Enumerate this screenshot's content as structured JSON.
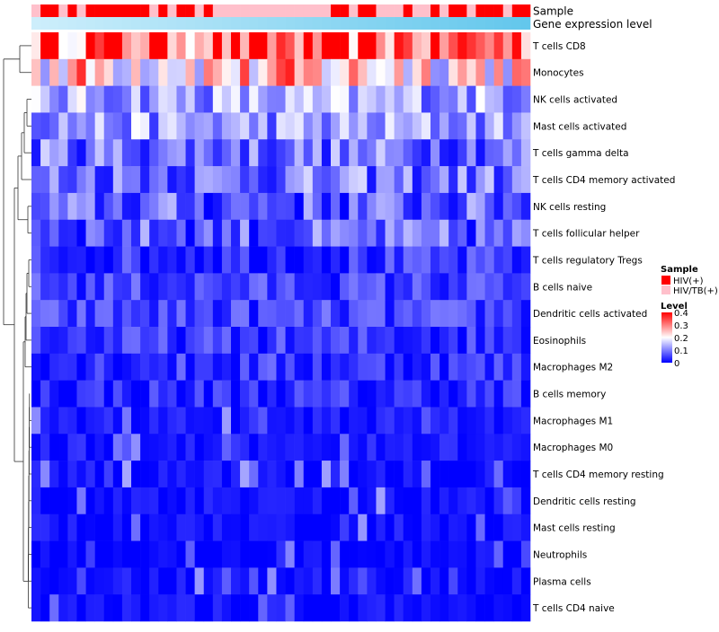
{
  "chart_data": {
    "type": "heatmap",
    "annotation_labels": {
      "sample": "Sample",
      "gene_expression": "Gene expression level"
    },
    "sample_groups": [
      "HIV/TB(+)",
      "HIV(+)",
      "HIV(+)",
      "HIV/TB(+)",
      "HIV(+)",
      "HIV/TB(+)",
      "HIV(+)",
      "HIV(+)",
      "HIV(+)",
      "HIV(+)",
      "HIV(+)",
      "HIV(+)",
      "HIV(+)",
      "HIV/TB(+)",
      "HIV(+)",
      "HIV/TB(+)",
      "HIV(+)",
      "HIV(+)",
      "HIV/TB(+)",
      "HIV(+)",
      "HIV/TB(+)",
      "HIV/TB(+)",
      "HIV/TB(+)",
      "HIV/TB(+)",
      "HIV/TB(+)",
      "HIV/TB(+)",
      "HIV/TB(+)",
      "HIV/TB(+)",
      "HIV/TB(+)",
      "HIV/TB(+)",
      "HIV/TB(+)",
      "HIV/TB(+)",
      "HIV/TB(+)",
      "HIV(+)",
      "HIV(+)",
      "HIV/TB(+)",
      "HIV(+)",
      "HIV(+)",
      "HIV/TB(+)",
      "HIV/TB(+)",
      "HIV/TB(+)",
      "HIV(+)",
      "HIV/TB(+)",
      "HIV/TB(+)",
      "HIV(+)",
      "HIV/TB(+)",
      "HIV(+)",
      "HIV(+)",
      "HIV/TB(+)",
      "HIV(+)",
      "HIV(+)",
      "HIV(+)",
      "HIV/TB(+)",
      "HIV(+)",
      "HIV(+)"
    ],
    "rows": [
      "T cells CD8",
      "Monocytes",
      "NK cells activated",
      "Mast cells activated",
      "T cells gamma delta",
      "T cells CD4 memory activated",
      "NK cells resting",
      "T cells follicular helper",
      "T cells regulatory  Tregs",
      "B cells naive",
      "Dendritic cells activated",
      "Eosinophils",
      "Macrophages M2",
      "B cells memory",
      "Macrophages M1",
      "Macrophages M0",
      "T cells CD4 memory resting",
      "Dendritic cells resting",
      "Mast cells resting",
      "Neutrophils",
      "Plasma cells",
      "T cells CD4 naive"
    ],
    "row_base_levels": [
      0.33,
      0.24,
      0.13,
      0.12,
      0.09,
      0.09,
      0.07,
      0.07,
      0.04,
      0.05,
      0.05,
      0.04,
      0.04,
      0.03,
      0.02,
      0.02,
      0.01,
      0.01,
      0.01,
      0.0,
      0.01,
      0.01
    ],
    "color_scale": {
      "min": 0,
      "max": 0.4,
      "low": "#0000ff",
      "mid": "#ffffff",
      "high": "#ff0000",
      "midpoint": 0.2
    },
    "sample_colors": {
      "HIV(+)": "#ff0000",
      "HIV/TB(+)": "#ffc0cb"
    },
    "gene_expression_gradient": [
      "#cdeefb",
      "#63c7ec"
    ],
    "legend": {
      "sample_title": "Sample",
      "sample_entries": [
        "HIV(+)",
        "HIV/TB(+)"
      ],
      "level_title": "Level",
      "level_ticks": [
        "0.4",
        "0.3",
        "0.2",
        "0.1",
        "0"
      ]
    },
    "dendrogram": "rows"
  }
}
